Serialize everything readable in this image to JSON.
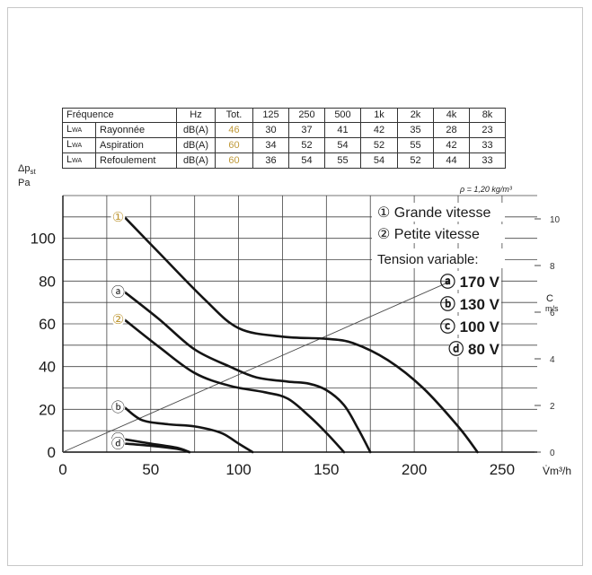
{
  "frequency_table": {
    "header": [
      "Fréquence",
      "Hz",
      "Tot.",
      "125",
      "250",
      "500",
      "1k",
      "2k",
      "4k",
      "8k"
    ],
    "rows": [
      {
        "symbol": "L",
        "subscript": "WA",
        "name": "Rayonnée",
        "unit": "dB(A)",
        "total": "46",
        "values": [
          "30",
          "37",
          "41",
          "42",
          "35",
          "28",
          "23"
        ]
      },
      {
        "symbol": "L",
        "subscript": "WA",
        "name": "Aspiration",
        "unit": "dB(A)",
        "total": "60",
        "values": [
          "34",
          "52",
          "54",
          "52",
          "55",
          "42",
          "33"
        ]
      },
      {
        "symbol": "L",
        "subscript": "WA",
        "name": "Refoulement",
        "unit": "dB(A)",
        "total": "60",
        "values": [
          "36",
          "54",
          "55",
          "54",
          "52",
          "44",
          "33"
        ]
      }
    ],
    "density_note": "ρ = 1,20 kg/m³"
  },
  "chart_data": {
    "type": "line",
    "ylabel": "Δpst Pa",
    "ylabel_parts": {
      "symbol": "Δp",
      "sub": "st",
      "unit": "Pa"
    },
    "xlabel": "V̇m³/h",
    "xlim": [
      0,
      270
    ],
    "ylim": [
      0,
      120
    ],
    "x_ticks": [
      0,
      50,
      100,
      150,
      200,
      250
    ],
    "y_ticks": [
      0,
      20,
      40,
      60,
      80,
      100
    ],
    "right_axis": {
      "label_top": "C",
      "label_unit": "m/s",
      "range": [
        0,
        11
      ],
      "ticks": [
        0,
        2,
        4,
        6,
        8,
        10
      ]
    },
    "grid": true,
    "legend": {
      "speed_items": [
        {
          "marker": "①",
          "label": "Grande vitesse"
        },
        {
          "marker": "②",
          "label": "Petite vitesse"
        }
      ],
      "voltage_title": "Tension variable:",
      "voltage_items": [
        {
          "marker": "ⓐ",
          "label": "170 V"
        },
        {
          "marker": "ⓑ",
          "label": "130 V"
        },
        {
          "marker": "ⓒ",
          "label": "100 V"
        },
        {
          "marker": "ⓓ",
          "label": "80 V"
        }
      ],
      "placement": "top-right"
    },
    "series": [
      {
        "marker": "①",
        "marker_color": "#c09a3a",
        "x": [
          35,
          55,
          80,
          100,
          125,
          150,
          165,
          185,
          205,
          225,
          236
        ],
        "y": [
          110,
          93,
          72,
          58,
          54,
          53,
          51,
          43,
          30,
          12,
          0
        ]
      },
      {
        "marker": "ⓐ",
        "marker_color": "#1a1a1a",
        "x": [
          35,
          55,
          75,
          95,
          110,
          128,
          140,
          150,
          160,
          168,
          175
        ],
        "y": [
          75,
          62,
          48,
          40,
          35,
          33,
          32,
          29,
          22,
          11,
          0
        ]
      },
      {
        "marker": "②",
        "marker_color": "#c09a3a",
        "x": [
          35,
          55,
          75,
          95,
          115,
          128,
          140,
          150,
          160
        ],
        "y": [
          62,
          49,
          37,
          31,
          28,
          25,
          17,
          9,
          0
        ]
      },
      {
        "marker": "ⓑ",
        "marker_color": "#1a1a1a",
        "x": [
          35,
          45,
          60,
          75,
          90,
          100,
          108
        ],
        "y": [
          21,
          15,
          13,
          12,
          9,
          4,
          0
        ]
      },
      {
        "marker": "ⓒ",
        "marker_color": "#1a1a1a",
        "x": [
          35,
          50,
          65,
          72
        ],
        "y": [
          6,
          4,
          2,
          0
        ]
      },
      {
        "marker": "ⓓ",
        "marker_color": "#1a1a1a",
        "x": [
          35,
          50,
          65,
          72
        ],
        "y": [
          4,
          3,
          1.5,
          0
        ]
      }
    ],
    "air_speed_line": {
      "x": [
        0,
        226
      ],
      "c": [
        0,
        7.5
      ]
    }
  }
}
